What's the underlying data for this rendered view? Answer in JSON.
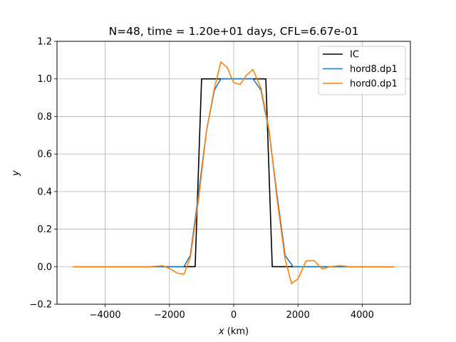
{
  "chart_data": {
    "type": "line",
    "title": "N=48, time = 1.20e+01 days, CFL=6.67e-01",
    "xlabel_var": "x",
    "xlabel_unit": " (km)",
    "ylabel": "y",
    "xlim": [
      -5500,
      5500
    ],
    "ylim": [
      -0.2,
      1.2
    ],
    "xticks": [
      -4000,
      -2000,
      0,
      2000,
      4000
    ],
    "xtick_labels": [
      "−4000",
      "−2000",
      "0",
      "2000",
      "4000"
    ],
    "yticks": [
      -0.2,
      0.0,
      0.2,
      0.4,
      0.6,
      0.8,
      1.0,
      1.2
    ],
    "ytick_labels": [
      "−0.2",
      "0.0",
      "0.2",
      "0.4",
      "0.6",
      "0.8",
      "1.0",
      "1.2"
    ],
    "grid": true,
    "legend_position": "top-right",
    "series": [
      {
        "name": "IC",
        "color": "#000000",
        "x": [
          -5000,
          -1200,
          -1000,
          1000,
          1200,
          5000
        ],
        "y": [
          0,
          0,
          1,
          1,
          0,
          0
        ]
      },
      {
        "name": "hord8.dp1",
        "color": "#1f77b4",
        "x": [
          -5000,
          -2100,
          -1800,
          -1550,
          -1350,
          -1100,
          -850,
          -600,
          -400,
          -150,
          100,
          350,
          600,
          850,
          1100,
          1350,
          1600,
          1850,
          2100,
          5000
        ],
        "y": [
          0,
          0,
          0,
          0,
          0.06,
          0.38,
          0.72,
          0.94,
          1.0,
          1.0,
          1.0,
          1.0,
          1.0,
          0.94,
          0.72,
          0.38,
          0.06,
          0,
          0,
          0
        ]
      },
      {
        "name": "hord0.dp1",
        "color": "#ff7f0e",
        "x": [
          -5000,
          -2600,
          -2200,
          -2000,
          -1750,
          -1550,
          -1350,
          -1100,
          -850,
          -600,
          -400,
          -200,
          0,
          200,
          400,
          600,
          850,
          1100,
          1350,
          1600,
          1800,
          2000,
          2250,
          2500,
          2750,
          3000,
          3300,
          3600,
          4000,
          5000
        ],
        "y": [
          0,
          0,
          0.005,
          -0.01,
          -0.035,
          -0.04,
          0.05,
          0.35,
          0.72,
          0.95,
          1.09,
          1.06,
          0.98,
          0.97,
          1.02,
          1.05,
          0.95,
          0.73,
          0.36,
          0.04,
          -0.09,
          -0.065,
          0.03,
          0.033,
          -0.012,
          0.0,
          0.005,
          0.0,
          0.0,
          0
        ]
      }
    ]
  }
}
